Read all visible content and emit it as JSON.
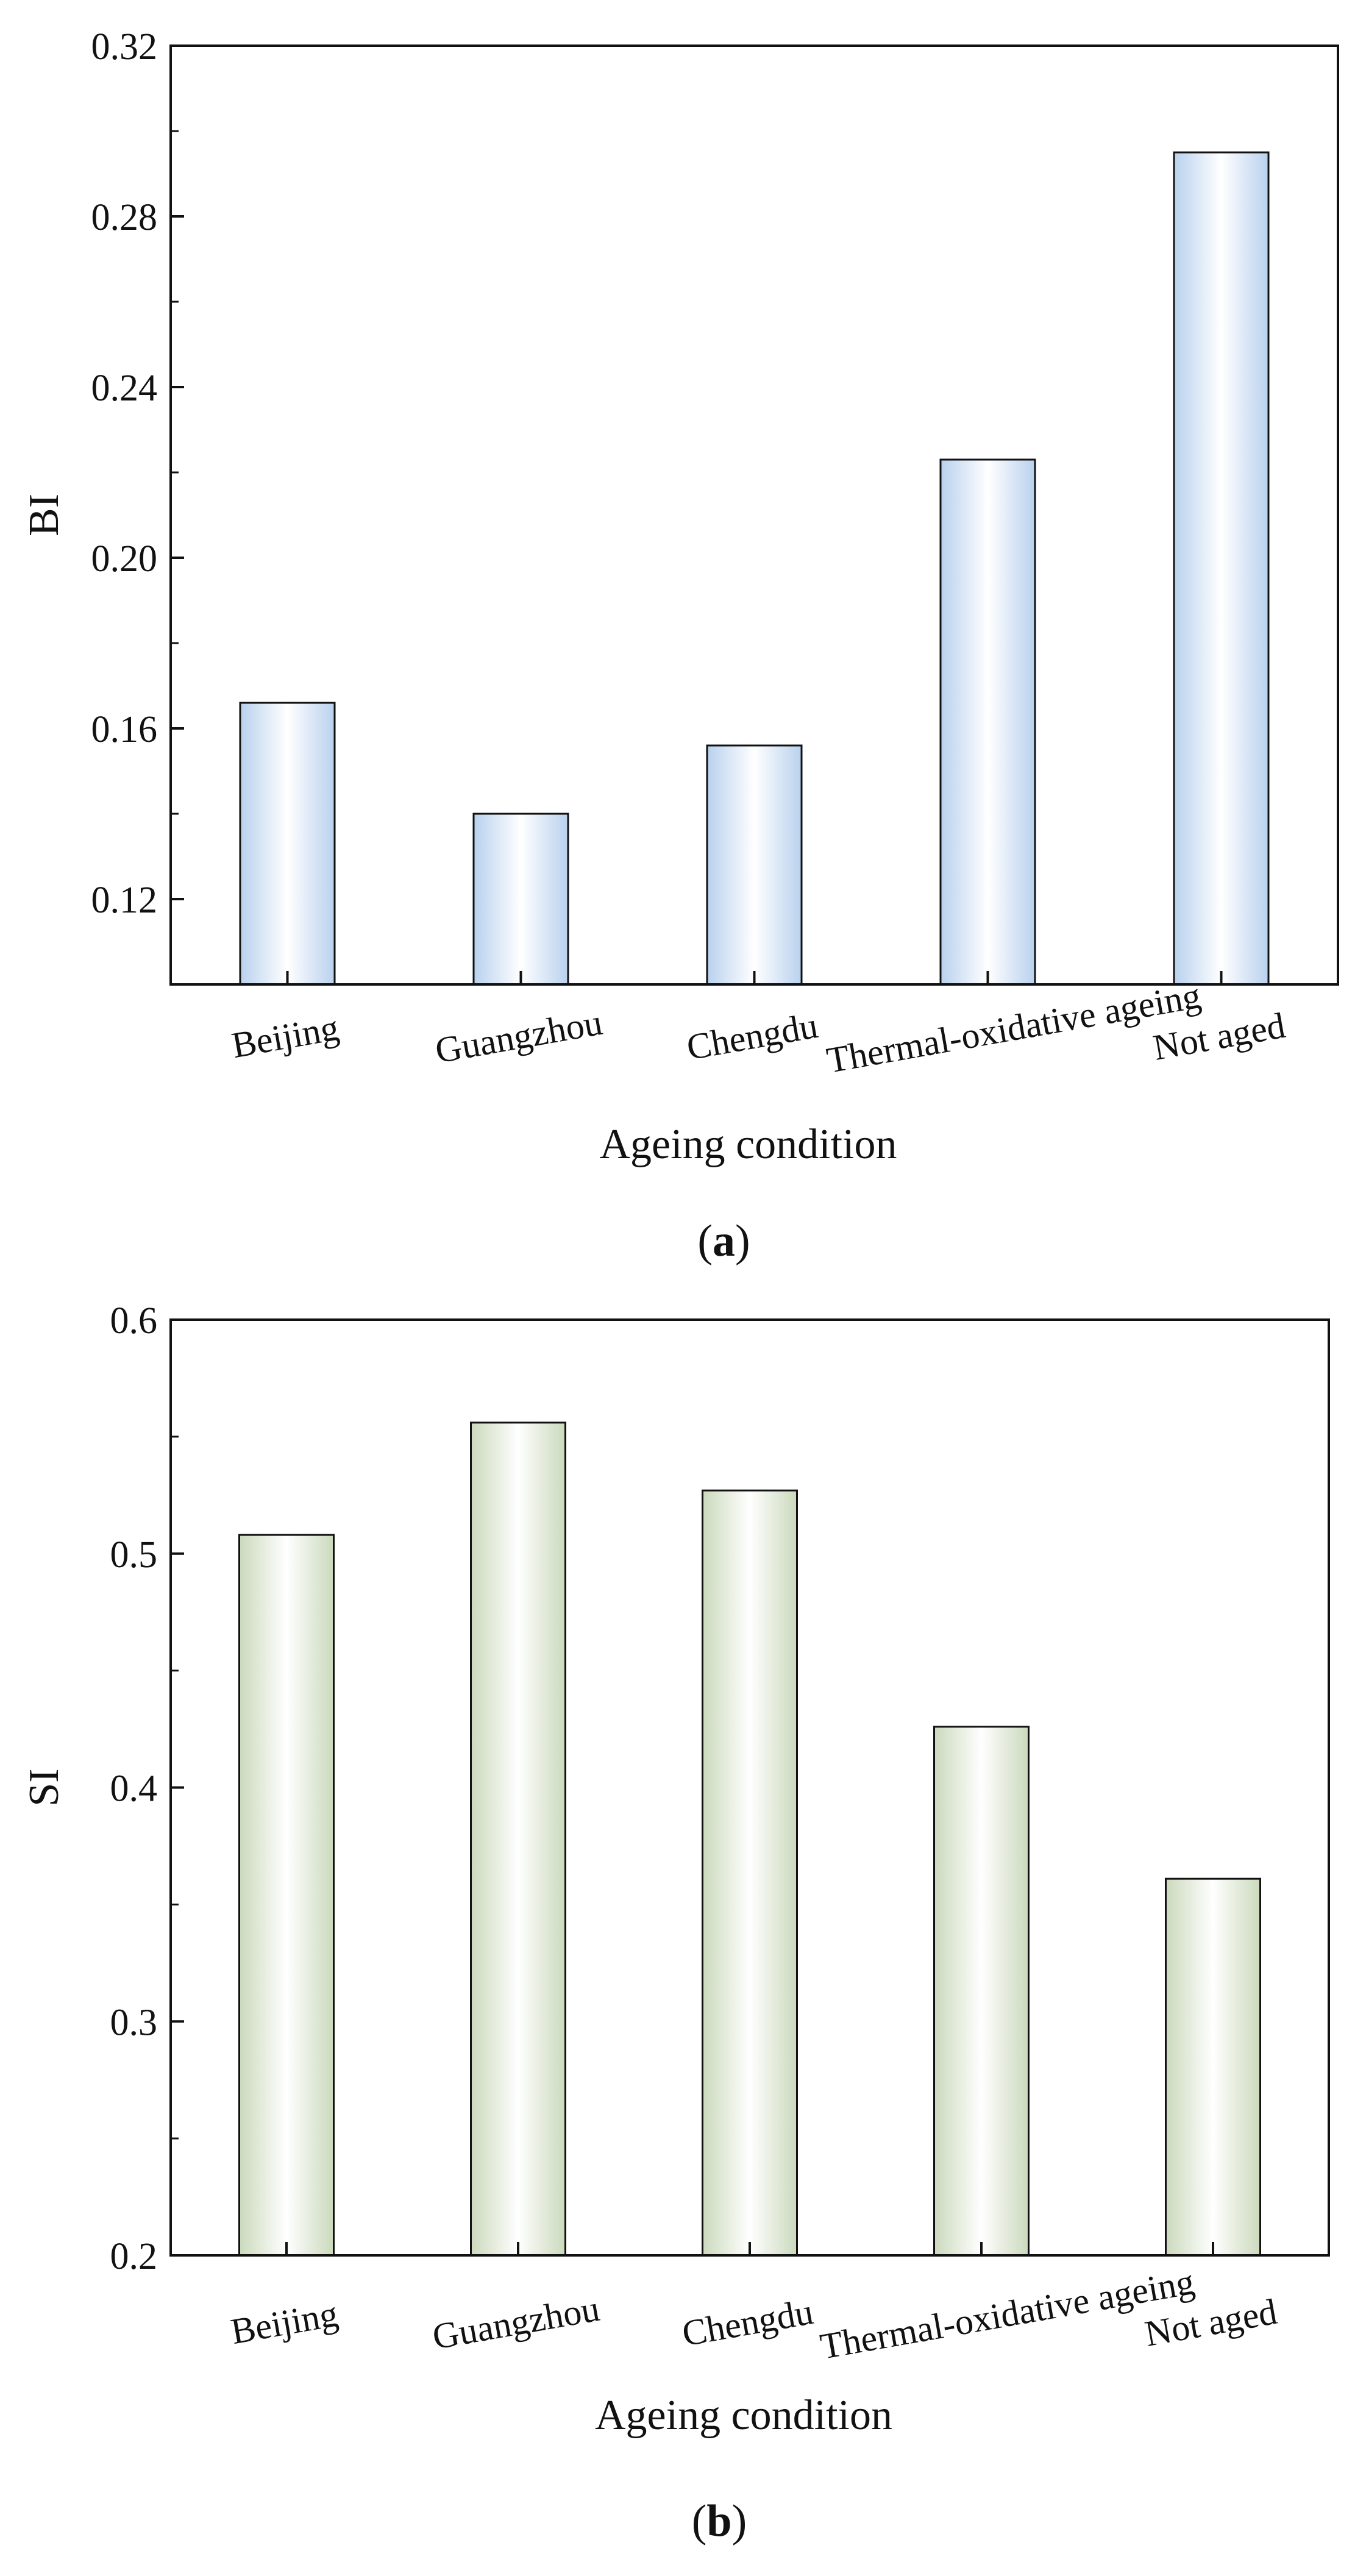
{
  "chart_data": [
    {
      "type": "bar",
      "panel": "(a)",
      "panel_letter": "a",
      "title": "",
      "xlabel": "Ageing condition",
      "ylabel": "BI",
      "categories": [
        "Beijing",
        "Guangzhou",
        "Chengdu",
        "Thermal-oxidative ageing",
        "Not aged"
      ],
      "values": [
        0.166,
        0.14,
        0.156,
        0.223,
        0.295
      ],
      "ylim": [
        0.1,
        0.32
      ],
      "yticks": [
        0.12,
        0.16,
        0.2,
        0.24,
        0.28,
        0.32
      ],
      "ytick_labels": [
        "0.12",
        "0.16",
        "0.20",
        "0.24",
        "0.28",
        "0.32"
      ],
      "bar_color": "#bcd4ee",
      "grid": false
    },
    {
      "type": "bar",
      "panel": "(b)",
      "panel_letter": "b",
      "title": "",
      "xlabel": "Ageing condition",
      "ylabel": "SI",
      "categories": [
        "Beijing",
        "Guangzhou",
        "Chengdu",
        "Thermal-oxidative ageing",
        "Not aged"
      ],
      "values": [
        0.508,
        0.556,
        0.527,
        0.426,
        0.361
      ],
      "ylim": [
        0.2,
        0.6
      ],
      "yticks": [
        0.2,
        0.3,
        0.4,
        0.5,
        0.6
      ],
      "ytick_labels": [
        "0.2",
        "0.3",
        "0.4",
        "0.5",
        "0.6"
      ],
      "bar_color": "#cfdcc0",
      "grid": false
    }
  ]
}
